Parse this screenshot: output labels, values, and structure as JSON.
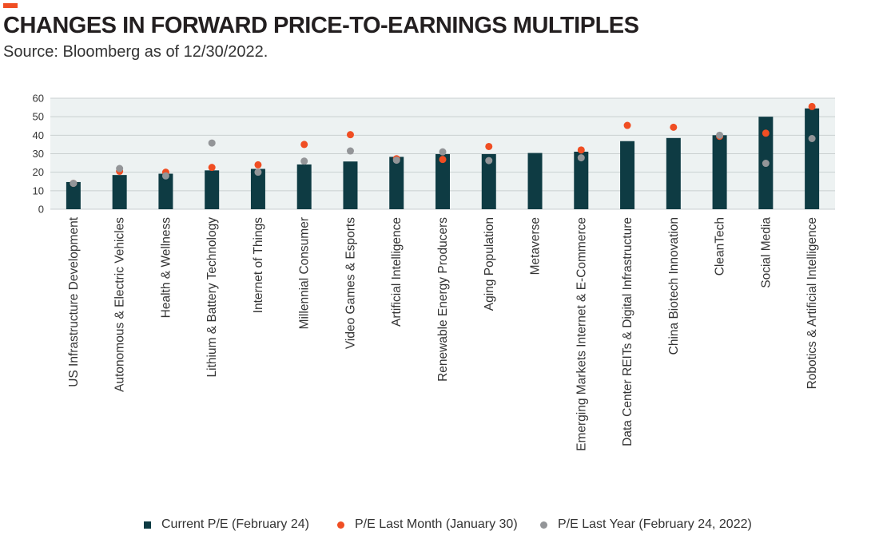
{
  "header": {
    "title": "CHANGES IN FORWARD PRICE-TO-EARNINGS MULTIPLES",
    "subtitle": "Source: Bloomberg as of 12/30/2022."
  },
  "colors": {
    "accent": "#f04e23",
    "bar": "#0e3b43",
    "last_month": "#f04e23",
    "last_year": "#939598",
    "plot_bg": "#edf2f2",
    "grid": "#c9cfd0"
  },
  "legend": {
    "current": "Current P/E (February 24)",
    "last_month": "P/E Last Month (January 30)",
    "last_year": "P/E Last Year (February 24, 2022)"
  },
  "chart_data": {
    "type": "bar",
    "title": "CHANGES IN FORWARD PRICE-TO-EARNINGS MULTIPLES",
    "subtitle": "Source: Bloomberg as of 12/30/2022.",
    "xlabel": "",
    "ylabel": "",
    "ylim": [
      0,
      60
    ],
    "yticks": [
      0,
      10,
      20,
      30,
      40,
      50,
      60
    ],
    "grid": true,
    "legend_position": "bottom",
    "categories": [
      "US Infrastructure Development",
      "Autonomous & Electric Vehicles",
      "Health & Wellness",
      "Lithium & Battery Technology",
      "Internet of Things",
      "Millennial Consumer",
      "Video Games & Esports",
      "Artificial Intelligence",
      "Renewable Energy Producers",
      "Aging Population",
      "Metaverse",
      "Emerging Markets Internet & E-Commerce",
      "Data Center REITs & Digital Infrastructure",
      "China Biotech Innovation",
      "CleanTech",
      "Social Media",
      "Robotics & Artificial Intelligence"
    ],
    "series": [
      {
        "name": "Current P/E (February 24)",
        "type": "bar",
        "values": [
          14.7,
          18.5,
          19.2,
          21.0,
          21.8,
          24.2,
          25.8,
          28.3,
          29.8,
          29.8,
          30.4,
          31.1,
          36.8,
          38.5,
          40.0,
          50.0,
          54.5
        ]
      },
      {
        "name": "P/E Last Month (January 30)",
        "type": "scatter",
        "values": [
          14.0,
          20.5,
          20.0,
          22.6,
          24.0,
          35.0,
          40.3,
          27.3,
          26.9,
          33.9,
          null,
          32.0,
          45.3,
          44.3,
          39.4,
          41.1,
          55.5
        ]
      },
      {
        "name": "P/E Last Year (February 24, 2022)",
        "type": "scatter",
        "values": [
          14.0,
          22.0,
          18.0,
          35.8,
          20.0,
          26.0,
          31.5,
          26.5,
          31.0,
          26.3,
          null,
          27.8,
          null,
          null,
          40.0,
          24.8,
          38.2
        ]
      }
    ]
  }
}
